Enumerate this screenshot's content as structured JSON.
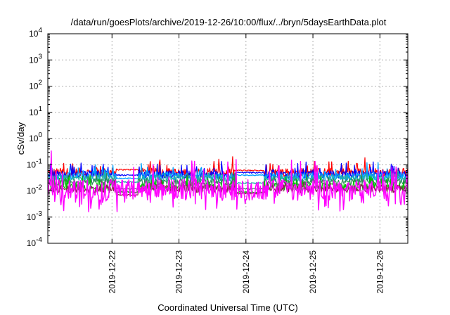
{
  "chart_data": {
    "type": "line",
    "title": "/data/run/goesPlots/archive/2019-12-26/10:00/flux/../bryn/5daysEarthData.plot",
    "xlabel": "Coordinated Universal Time (UTC)",
    "ylabel": "cSv/day",
    "yscale": "log",
    "ylim": [
      0.0001,
      10000
    ],
    "xlim": [
      "2019-12-21T01:00",
      "2019-12-26T10:00"
    ],
    "grid": true,
    "y_ticks": [
      {
        "base": "10",
        "exp": "-4"
      },
      {
        "base": "10",
        "exp": "-3"
      },
      {
        "base": "10",
        "exp": "-2"
      },
      {
        "base": "10",
        "exp": "-1"
      },
      {
        "base": "10",
        "exp": "0"
      },
      {
        "base": "10",
        "exp": "1"
      },
      {
        "base": "10",
        "exp": "2"
      },
      {
        "base": "10",
        "exp": "3"
      },
      {
        "base": "10",
        "exp": "4"
      }
    ],
    "x_ticks": [
      "2019-12-22",
      "2019-12-23",
      "2019-12-24",
      "2019-12-25",
      "2019-12-26"
    ],
    "series": [
      {
        "color": "#ff0000",
        "base": 0.05,
        "noise": 0.35,
        "spike": 0.6,
        "dips": [
          [
            0.19,
            0.25,
            0.065
          ],
          [
            0.52,
            0.6,
            0.06
          ]
        ]
      },
      {
        "color": "#0000ff",
        "base": 0.042,
        "noise": 0.3,
        "spike": 0.5,
        "dips": [
          [
            0.19,
            0.25,
            0.04
          ],
          [
            0.52,
            0.6,
            0.05
          ]
        ]
      },
      {
        "color": "#00a0ff",
        "base": 0.035,
        "noise": 0.3,
        "spike": 0.5,
        "dips": [
          [
            0.19,
            0.25,
            0.03
          ],
          [
            0.52,
            0.6,
            0.04
          ]
        ]
      },
      {
        "color": "#20b2aa",
        "base": 0.03,
        "noise": 0.25,
        "spike": 0.3,
        "dips": [
          [
            0.19,
            0.25,
            0.022
          ],
          [
            0.52,
            0.6,
            0.02
          ]
        ]
      },
      {
        "color": "#2e8b57",
        "base": 0.022,
        "noise": 0.25,
        "spike": 0.3,
        "dips": [
          [
            0.19,
            0.25,
            0.012
          ],
          [
            0.52,
            0.6,
            0.012
          ]
        ]
      },
      {
        "color": "#00c000",
        "base": 0.015,
        "noise": 0.3,
        "spike": 0.4,
        "dips": [
          [
            0.19,
            0.25,
            0.009
          ],
          [
            0.52,
            0.6,
            0.009
          ]
        ]
      },
      {
        "color": "#8b2252",
        "base": 0.012,
        "noise": 0.3,
        "spike": 0.4,
        "dips": [
          [
            0.19,
            0.25,
            0.007
          ],
          [
            0.52,
            0.6,
            0.008
          ]
        ]
      },
      {
        "color": "#ff00ff",
        "base": 0.011,
        "noise": 0.8,
        "spike": 1.4,
        "dips": []
      }
    ]
  }
}
